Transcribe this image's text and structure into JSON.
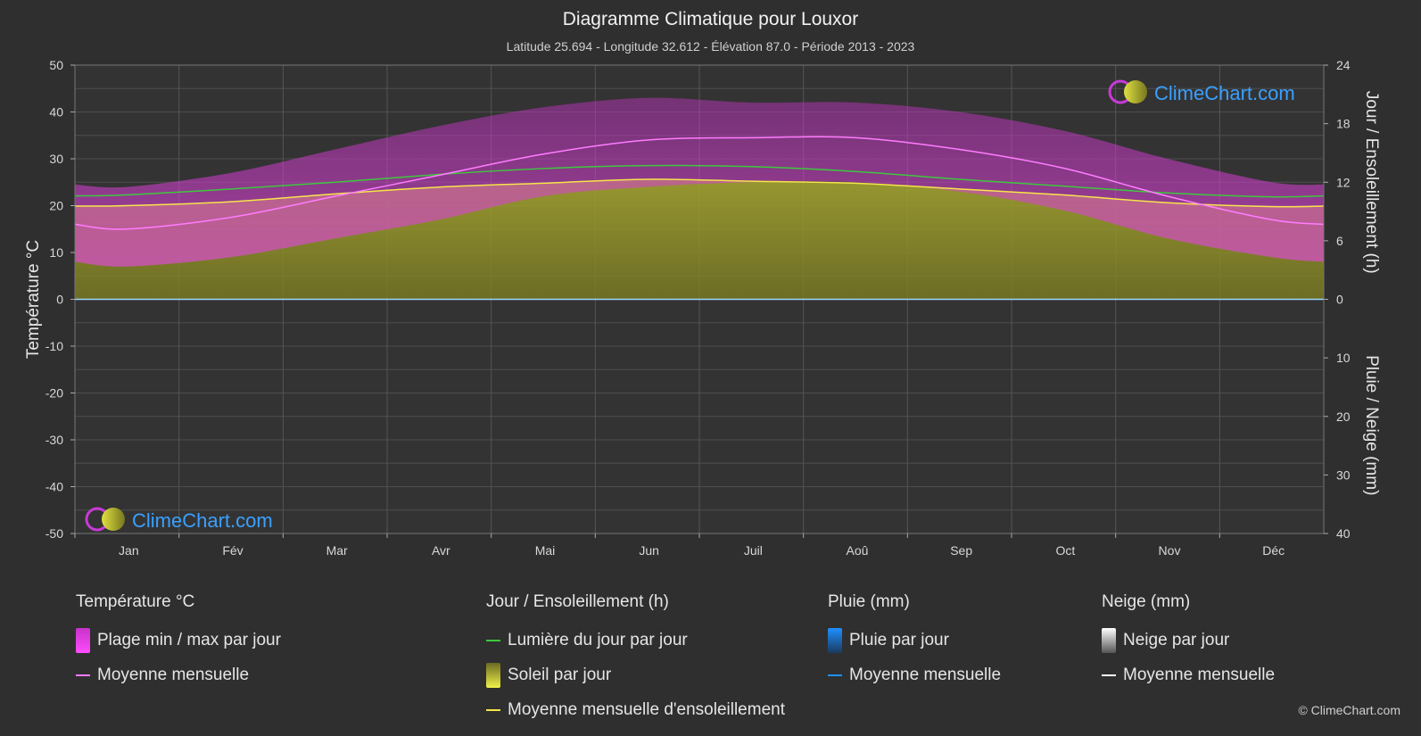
{
  "header": {
    "title": "Diagramme Climatique pour Louxor",
    "subtitle": "Latitude 25.694 - Longitude 32.612 - Élévation 87.0 - Période 2013 - 2023"
  },
  "logo_text": "ClimeChart.com",
  "copyright": "© ClimeChart.com",
  "legend": {
    "temperature": {
      "heading": "Température °C",
      "range_label": "Plage min / max par jour",
      "mean_label": "Moyenne mensuelle"
    },
    "sun": {
      "heading": "Jour / Ensoleillement (h)",
      "daylight_label": "Lumière du jour par jour",
      "sunshine_label": "Soleil par jour",
      "sunshine_mean_label": "Moyenne mensuelle d'ensoleillement"
    },
    "rain": {
      "heading": "Pluie (mm)",
      "daily_label": "Pluie par jour",
      "mean_label": "Moyenne mensuelle"
    },
    "snow": {
      "heading": "Neige (mm)",
      "daily_label": "Neige par jour",
      "mean_label": "Moyenne mensuelle"
    }
  },
  "colors": {
    "background": "#2f2f2f",
    "temp_range": "#c832c8",
    "temp_mean": "#ff7cff",
    "daylight": "#3ec83e",
    "sunshine_fill": "#9a9a2a",
    "sunshine_mean": "#f5e64a",
    "rain": "#1e90ff",
    "snow": "#ffffff",
    "logo_text": "#3aa0ff"
  },
  "chart_data": {
    "type": "area",
    "categories": [
      "Jan",
      "Fév",
      "Mar",
      "Avr",
      "Mai",
      "Jun",
      "Juil",
      "Aoû",
      "Sep",
      "Oct",
      "Nov",
      "Déc"
    ],
    "y_left": {
      "label": "Température °C",
      "range": [
        -50,
        50
      ],
      "ticks": [
        "50",
        "40",
        "30",
        "20",
        "10",
        "0",
        "-10",
        "-20",
        "-30",
        "-40",
        "-50"
      ]
    },
    "y_right_top": {
      "label": "Jour / Ensoleillement (h)",
      "range": [
        0,
        24
      ],
      "ticks": [
        "24",
        "18",
        "12",
        "6",
        "0"
      ]
    },
    "y_right_bottom": {
      "label": "Pluie / Neige (mm)",
      "range": [
        0,
        40
      ],
      "ticks": [
        "10",
        "20",
        "30",
        "40"
      ]
    },
    "series": [
      {
        "name": "Moyenne mensuelle",
        "unit": "°C",
        "values": [
          15.0,
          17.5,
          22.0,
          26.5,
          31.0,
          34.0,
          34.5,
          34.5,
          32.0,
          28.0,
          22.0,
          17.0
        ]
      },
      {
        "name": "Plage min / max par jour (max)",
        "unit": "°C",
        "values": [
          24,
          27,
          32,
          37,
          41,
          43,
          42,
          42,
          40,
          36,
          30,
          25
        ]
      },
      {
        "name": "Plage min / max par jour (min)",
        "unit": "°C",
        "values": [
          7,
          9,
          13,
          17,
          22,
          24,
          25,
          25,
          23,
          19,
          13,
          9
        ]
      },
      {
        "name": "Lumière du jour par jour",
        "unit": "h",
        "values": [
          10.7,
          11.3,
          12.0,
          12.8,
          13.4,
          13.7,
          13.6,
          13.1,
          12.3,
          11.6,
          10.9,
          10.5
        ]
      },
      {
        "name": "Moyenne mensuelle d'ensoleillement",
        "unit": "h",
        "values": [
          9.6,
          10.0,
          10.8,
          11.5,
          11.9,
          12.3,
          12.1,
          11.9,
          11.3,
          10.7,
          9.9,
          9.5
        ]
      },
      {
        "name": "Pluie par jour",
        "unit": "mm",
        "values": [
          0.0,
          0.0,
          0.0,
          0.0,
          0.0,
          0.0,
          0.0,
          0.0,
          0.0,
          0.0,
          0.0,
          0.0
        ]
      },
      {
        "name": "Neige par jour",
        "unit": "mm",
        "values": [
          0,
          0,
          0,
          0,
          0,
          0,
          0,
          0,
          0,
          0,
          0,
          0
        ]
      }
    ],
    "grid": true
  }
}
